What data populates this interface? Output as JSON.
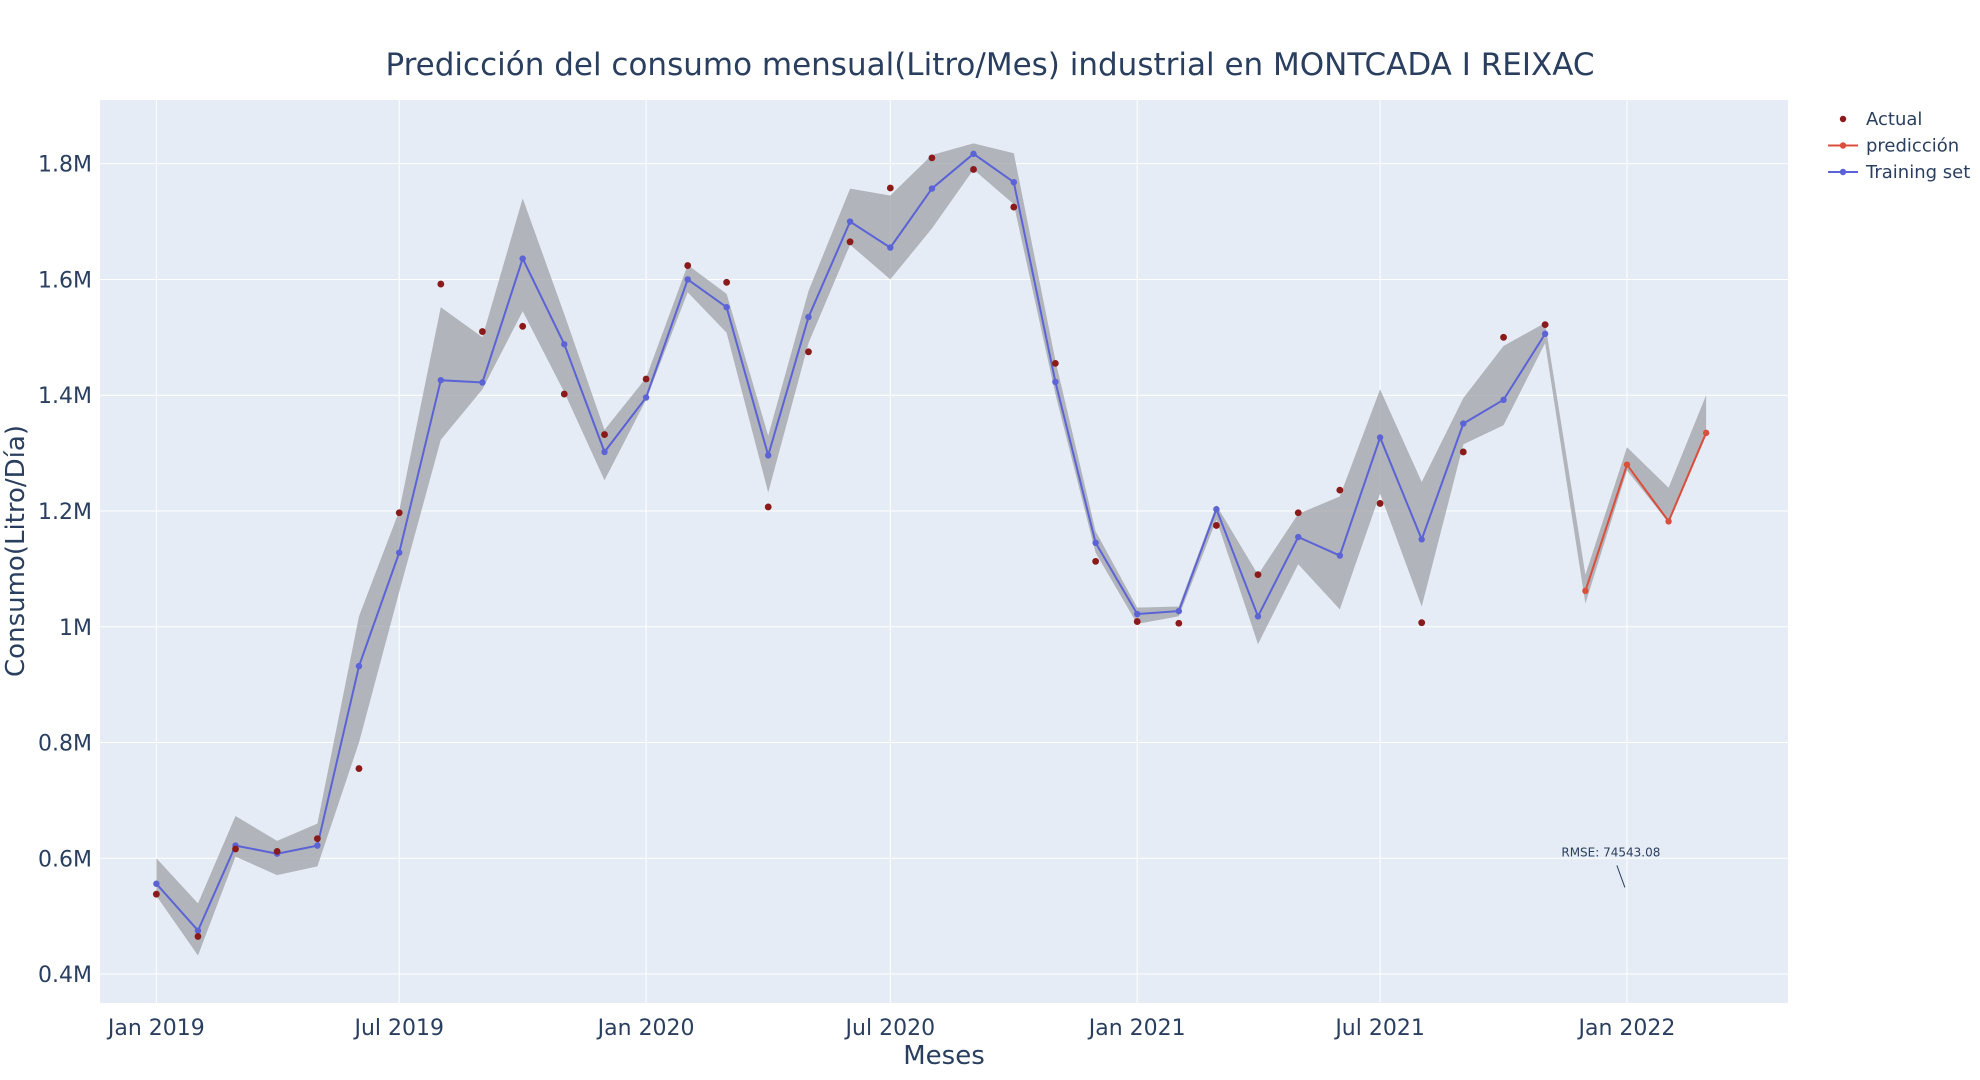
{
  "chart_data": {
    "type": "line",
    "title": "Predicción del consumo mensual(Litro/Mes) industrial en MONTCADA I REIXAC",
    "xlabel": "Meses",
    "ylabel": "Consumo(Litro/Día)",
    "ylim": [
      350000,
      1910000
    ],
    "xlim": [
      "2018-11-20",
      "2022-05-01"
    ],
    "x_ticks": [
      {
        "date": "2019-01-01",
        "label": "Jan 2019"
      },
      {
        "date": "2019-07-01",
        "label": "Jul 2019"
      },
      {
        "date": "2020-01-01",
        "label": "Jan 2020"
      },
      {
        "date": "2020-07-01",
        "label": "Jul 2020"
      },
      {
        "date": "2021-01-01",
        "label": "Jan 2021"
      },
      {
        "date": "2021-07-01",
        "label": "Jul 2021"
      },
      {
        "date": "2022-01-01",
        "label": "Jan 2022"
      }
    ],
    "y_ticks": [
      {
        "value": 400000,
        "label": "0.4M"
      },
      {
        "value": 600000,
        "label": "0.6M"
      },
      {
        "value": 800000,
        "label": "0.8M"
      },
      {
        "value": 1000000,
        "label": "1M"
      },
      {
        "value": 1200000,
        "label": "1.2M"
      },
      {
        "value": 1400000,
        "label": "1.4M"
      },
      {
        "value": 1600000,
        "label": "1.6M"
      },
      {
        "value": 1800000,
        "label": "1.8M"
      }
    ],
    "grid": true,
    "legend_position": "top-right",
    "series": [
      {
        "name": "Actual",
        "mode": "markers",
        "color": "#8b1a1a",
        "x": [
          "2019-01-01",
          "2019-02-01",
          "2019-03-01",
          "2019-04-01",
          "2019-05-01",
          "2019-06-01",
          "2019-07-01",
          "2019-08-01",
          "2019-09-01",
          "2019-10-01",
          "2019-11-01",
          "2019-12-01",
          "2020-01-01",
          "2020-02-01",
          "2020-03-01",
          "2020-04-01",
          "2020-05-01",
          "2020-06-01",
          "2020-07-01",
          "2020-08-01",
          "2020-09-01",
          "2020-10-01",
          "2020-11-01",
          "2020-12-01",
          "2021-01-01",
          "2021-02-01",
          "2021-03-01",
          "2021-04-01",
          "2021-05-01",
          "2021-06-01",
          "2021-07-01",
          "2021-08-01",
          "2021-09-01",
          "2021-10-01",
          "2021-11-01"
        ],
        "y": [
          538000,
          465000,
          616000,
          612000,
          634000,
          755000,
          1197000,
          1592000,
          1510000,
          1519000,
          1402000,
          1332000,
          1428000,
          1624000,
          1595000,
          1207000,
          1475000,
          1665000,
          1758000,
          1810000,
          1790000,
          1725000,
          1455000,
          1113000,
          1009000,
          1006000,
          1175000,
          1090000,
          1197000,
          1236000,
          1213000,
          1007000,
          1302000,
          1500000,
          1522000
        ]
      },
      {
        "name": "predicción",
        "mode": "lines+markers",
        "color": "#dc4e3c",
        "x": [
          "2021-12-01",
          "2022-01-01",
          "2022-02-01",
          "2022-03-01"
        ],
        "y": [
          1062000,
          1280000,
          1182000,
          1335000
        ],
        "band_upper": [
          1090000,
          1310000,
          1240000,
          1400000
        ],
        "band_lower": [
          1040000,
          1270000,
          1180000,
          1330000
        ]
      },
      {
        "name": "Training set",
        "mode": "lines+markers",
        "color": "#5b63d6",
        "x": [
          "2019-01-01",
          "2019-02-01",
          "2019-03-01",
          "2019-04-01",
          "2019-05-01",
          "2019-06-01",
          "2019-07-01",
          "2019-08-01",
          "2019-09-01",
          "2019-10-01",
          "2019-11-01",
          "2019-12-01",
          "2020-01-01",
          "2020-02-01",
          "2020-03-01",
          "2020-04-01",
          "2020-05-01",
          "2020-06-01",
          "2020-07-01",
          "2020-08-01",
          "2020-09-01",
          "2020-10-01",
          "2020-11-01",
          "2020-12-01",
          "2021-01-01",
          "2021-02-01",
          "2021-03-01",
          "2021-04-01",
          "2021-05-01",
          "2021-06-01",
          "2021-07-01",
          "2021-08-01",
          "2021-09-01",
          "2021-10-01",
          "2021-11-01"
        ],
        "y": [
          556000,
          475000,
          622000,
          608000,
          622000,
          932000,
          1128000,
          1426000,
          1422000,
          1636000,
          1488000,
          1302000,
          1396000,
          1600000,
          1552000,
          1296000,
          1535000,
          1700000,
          1655000,
          1757000,
          1817000,
          1768000,
          1423000,
          1145000,
          1022000,
          1027000,
          1203000,
          1018000,
          1155000,
          1123000,
          1327000,
          1151000,
          1351000,
          1392000,
          1506000
        ],
        "band_upper": [
          600000,
          522000,
          673000,
          630000,
          660000,
          1018000,
          1200000,
          1552000,
          1500000,
          1740000,
          1540000,
          1340000,
          1430000,
          1625000,
          1575000,
          1330000,
          1580000,
          1757000,
          1745000,
          1815000,
          1835000,
          1818000,
          1460000,
          1165000,
          1033000,
          1035000,
          1210000,
          1090000,
          1195000,
          1225000,
          1410000,
          1250000,
          1395000,
          1485000,
          1525000
        ],
        "band_lower": [
          535000,
          432000,
          603000,
          571000,
          586000,
          800000,
          1060000,
          1323000,
          1410000,
          1545000,
          1405000,
          1253000,
          1392000,
          1578000,
          1508000,
          1232000,
          1490000,
          1660000,
          1600000,
          1688000,
          1790000,
          1730000,
          1402000,
          1128000,
          1005000,
          1018000,
          1185000,
          970000,
          1108000,
          1030000,
          1230000,
          1035000,
          1315000,
          1348000,
          1490000
        ]
      }
    ],
    "annotations": [
      {
        "text": "RMSE: 74543.08",
        "x": "2021-12-20",
        "y": 560000
      }
    ]
  },
  "colors": {
    "plot_bg": "#e5ecf6",
    "grid": "#ffffff",
    "band": "#9fa1a6",
    "text": "#2a3f5f"
  }
}
